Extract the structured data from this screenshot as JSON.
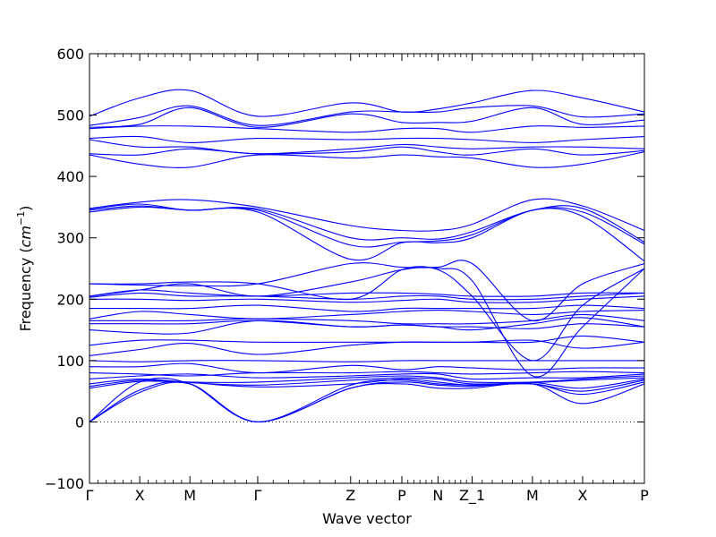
{
  "chart_data": {
    "type": "line",
    "xlabel": "Wave vector",
    "ylabel": "Frequency (cm⁻¹)",
    "ylabel_prefix": "Frequency (",
    "ylabel_unit": "cm",
    "ylabel_exp": "−1",
    "ylabel_suffix": ")",
    "ylim": [
      -100,
      600
    ],
    "yticks": [
      -100,
      0,
      100,
      200,
      300,
      400,
      500,
      600
    ],
    "ytick_labels": [
      "−100",
      "0",
      "100",
      "200",
      "300",
      "400",
      "500",
      "600"
    ],
    "xlim": [
      0,
      11.05
    ],
    "xticks": [
      {
        "x": 0.0,
        "label": "Γ"
      },
      {
        "x": 1.0,
        "label": "X"
      },
      {
        "x": 2.0,
        "label": "M"
      },
      {
        "x": 3.35,
        "label": "Γ"
      },
      {
        "x": 5.2,
        "label": "Z"
      },
      {
        "x": 6.22,
        "label": "P"
      },
      {
        "x": 6.94,
        "label": "N"
      },
      {
        "x": 7.62,
        "label": "Z_1"
      },
      {
        "x": 8.82,
        "label": "M"
      },
      {
        "x": 9.82,
        "label": "X"
      },
      {
        "x": 11.05,
        "label": "P"
      }
    ],
    "zero_line": true,
    "line_color": "#0000ff",
    "band_x": [
      0.0,
      1.0,
      2.0,
      3.35,
      5.2,
      6.22,
      6.94,
      7.62,
      8.82,
      9.82,
      11.05
    ],
    "series": [
      {
        "values": [
          0,
          48,
          62,
          0,
          55,
          62,
          55,
          55,
          62,
          30,
          62
        ]
      },
      {
        "values": [
          0,
          52,
          62,
          0,
          55,
          65,
          60,
          58,
          62,
          45,
          65
        ]
      },
      {
        "values": [
          0,
          65,
          62,
          0,
          60,
          68,
          62,
          60,
          62,
          50,
          68
        ]
      },
      {
        "values": [
          55,
          66,
          64,
          57,
          62,
          70,
          65,
          60,
          64,
          55,
          70
        ]
      },
      {
        "values": [
          58,
          68,
          64,
          60,
          68,
          72,
          70,
          62,
          64,
          68,
          72
        ]
      },
      {
        "values": [
          62,
          70,
          65,
          65,
          72,
          75,
          72,
          65,
          65,
          70,
          75
        ]
      },
      {
        "values": [
          70,
          75,
          78,
          72,
          75,
          78,
          78,
          70,
          72,
          72,
          78
        ]
      },
      {
        "values": [
          80,
          78,
          75,
          80,
          80,
          82,
          80,
          78,
          80,
          82,
          80
        ]
      },
      {
        "values": [
          90,
          90,
          95,
          80,
          92,
          85,
          90,
          88,
          85,
          88,
          88
        ]
      },
      {
        "values": [
          100,
          98,
          100,
          100,
          98,
          100,
          100,
          100,
          100,
          100,
          100
        ]
      },
      {
        "values": [
          108,
          118,
          128,
          110,
          125,
          130,
          130,
          130,
          133,
          120,
          130
        ]
      },
      {
        "values": [
          125,
          133,
          133,
          130,
          130,
          130,
          130,
          130,
          130,
          140,
          130
        ]
      },
      {
        "values": [
          150,
          145,
          145,
          165,
          155,
          158,
          155,
          155,
          152,
          160,
          155
        ]
      },
      {
        "values": [
          160,
          160,
          160,
          165,
          155,
          158,
          155,
          150,
          160,
          170,
          155
        ]
      },
      {
        "values": [
          165,
          165,
          165,
          168,
          165,
          160,
          160,
          160,
          165,
          175,
          165
        ]
      },
      {
        "values": [
          168,
          180,
          175,
          168,
          175,
          180,
          182,
          180,
          175,
          180,
          182
        ]
      },
      {
        "values": [
          185,
          185,
          185,
          190,
          180,
          185,
          185,
          185,
          185,
          190,
          185
        ]
      },
      {
        "values": [
          200,
          200,
          198,
          200,
          195,
          198,
          200,
          195,
          195,
          200,
          205
        ]
      },
      {
        "values": [
          203,
          210,
          205,
          205,
          200,
          205,
          205,
          200,
          200,
          205,
          210
        ]
      },
      {
        "values": [
          205,
          215,
          210,
          205,
          210,
          210,
          208,
          205,
          205,
          210,
          210
        ]
      },
      {
        "values": [
          205,
          215,
          225,
          205,
          228,
          248,
          248,
          205,
          100,
          190,
          250
        ]
      },
      {
        "values": [
          225,
          225,
          228,
          225,
          200,
          248,
          250,
          230,
          75,
          155,
          250
        ]
      },
      {
        "values": [
          225,
          223,
          222,
          225,
          258,
          252,
          252,
          258,
          165,
          225,
          258
        ]
      },
      {
        "values": [
          342,
          350,
          345,
          342,
          265,
          292,
          292,
          300,
          345,
          335,
          262
        ]
      },
      {
        "values": [
          345,
          352,
          345,
          345,
          288,
          293,
          295,
          305,
          345,
          342,
          290
        ]
      },
      {
        "values": [
          347,
          355,
          345,
          347,
          300,
          300,
          298,
          310,
          345,
          348,
          293
        ]
      },
      {
        "values": [
          348,
          358,
          362,
          350,
          320,
          312,
          312,
          322,
          362,
          352,
          312
        ]
      },
      {
        "values": [
          435,
          420,
          415,
          435,
          430,
          435,
          432,
          430,
          415,
          420,
          440
        ]
      },
      {
        "values": [
          437,
          435,
          445,
          437,
          440,
          448,
          440,
          435,
          445,
          435,
          442
        ]
      },
      {
        "values": [
          460,
          448,
          448,
          437,
          445,
          452,
          448,
          445,
          448,
          448,
          445
        ]
      },
      {
        "values": [
          462,
          465,
          455,
          462,
          460,
          462,
          462,
          460,
          455,
          460,
          465
        ]
      },
      {
        "values": [
          478,
          482,
          482,
          478,
          472,
          478,
          478,
          472,
          482,
          480,
          482
        ]
      },
      {
        "values": [
          480,
          485,
          512,
          480,
          502,
          488,
          488,
          490,
          512,
          485,
          492
        ]
      },
      {
        "values": [
          483,
          496,
          515,
          483,
          505,
          505,
          505,
          512,
          515,
          497,
          502
        ]
      },
      {
        "values": [
          498,
          528,
          540,
          498,
          520,
          505,
          510,
          520,
          540,
          528,
          505
        ]
      }
    ]
  }
}
